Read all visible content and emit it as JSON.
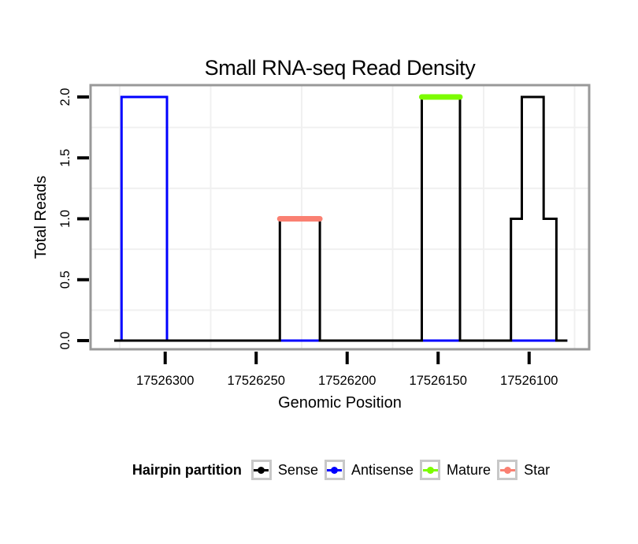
{
  "title": "Small RNA-seq Read Density",
  "chart_data": {
    "type": "step-line",
    "title": "Small RNA-seq Read Density",
    "xlabel": "Genomic Position",
    "ylabel": "Total Reads",
    "x_reversed": true,
    "xlim": [
      17526067,
      17526341
    ],
    "ylim": [
      -0.071,
      2.097
    ],
    "x_ticks": [
      17526300,
      17526250,
      17526200,
      17526150,
      17526100
    ],
    "x_minor": [
      17526325,
      17526275,
      17526225,
      17526175,
      17526125,
      17526075
    ],
    "y_ticks": [
      {
        "value": 2.0,
        "label": "2.0"
      },
      {
        "value": 1.5,
        "label": "1.5"
      },
      {
        "value": 1.0,
        "label": "1.0"
      },
      {
        "value": 0.5,
        "label": "0.5"
      },
      {
        "value": 0.0,
        "label": "0.0"
      }
    ],
    "y_minor": [
      0.25,
      0.75,
      1.25,
      1.75
    ],
    "series": [
      {
        "name": "Antisense",
        "color": "#0000FF",
        "points": [
          [
            17526328,
            0
          ],
          [
            17526324,
            0
          ],
          [
            17526324,
            2
          ],
          [
            17526299,
            2
          ],
          [
            17526299,
            0
          ],
          [
            17526079,
            0
          ]
        ]
      },
      {
        "name": "Sense",
        "color": "#000000",
        "points": [
          [
            17526328,
            0
          ],
          [
            17526237,
            0
          ],
          [
            17526237,
            1
          ],
          [
            17526215,
            1
          ],
          [
            17526215,
            0
          ],
          [
            17526159,
            0
          ],
          [
            17526159,
            2
          ],
          [
            17526138,
            2
          ],
          [
            17526138,
            0
          ],
          [
            17526110,
            0
          ],
          [
            17526110,
            1
          ],
          [
            17526104,
            1
          ],
          [
            17526104,
            2
          ],
          [
            17526092,
            2
          ],
          [
            17526092,
            1
          ],
          [
            17526085,
            1
          ],
          [
            17526085,
            0
          ],
          [
            17526079,
            0
          ]
        ]
      }
    ],
    "overlays": [
      {
        "name": "Mature",
        "color": "#7CFC00",
        "y": 2,
        "from": 17526159,
        "to": 17526138
      },
      {
        "name": "Star",
        "color": "#FA8072",
        "y": 1,
        "from": 17526237,
        "to": 17526215
      }
    ],
    "legend": {
      "title": "Hairpin partition",
      "items": [
        {
          "label": "Sense",
          "color": "#000000"
        },
        {
          "label": "Antisense",
          "color": "#0000FF"
        },
        {
          "label": "Mature",
          "color": "#7CFC00"
        },
        {
          "label": "Star",
          "color": "#FA8072"
        }
      ]
    },
    "colors": {
      "panel_border": "#999999",
      "grid_minor": "#f0f0f0",
      "tick": "#000000"
    }
  }
}
